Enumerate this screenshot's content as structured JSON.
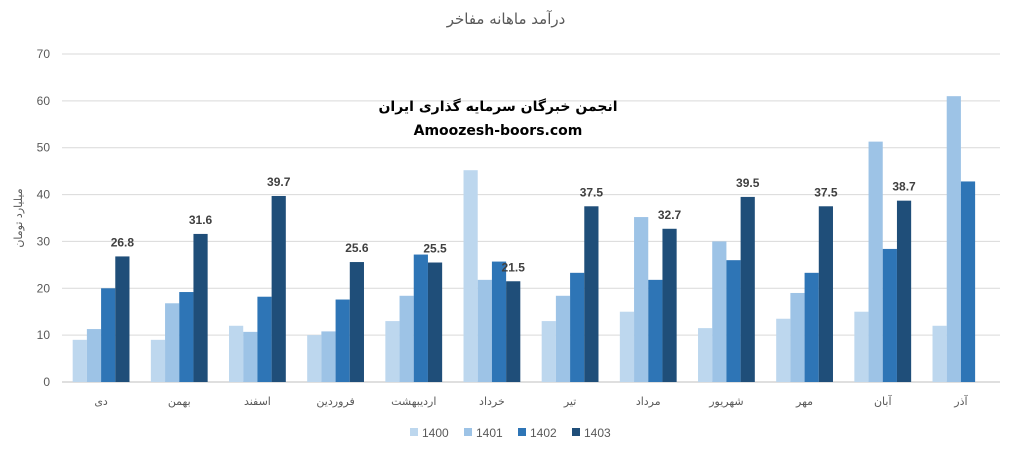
{
  "chart_data": {
    "type": "bar",
    "title": "درآمد ماهانه مفاخر",
    "ylabel": "میلیارد تومان",
    "xlabel": "",
    "ylim": [
      0,
      70
    ],
    "yticks": [
      0,
      10,
      20,
      30,
      40,
      50,
      60,
      70
    ],
    "grid": true,
    "legend_position": "bottom",
    "categories": [
      "دی",
      "بهمن",
      "اسفند",
      "فروردین",
      "اردیبهشت",
      "خرداد",
      "تیر",
      "مرداد",
      "شهریور",
      "مهر",
      "آبان",
      "آذر"
    ],
    "series": [
      {
        "name": "1400",
        "color": "#bdd7ee",
        "values": [
          9,
          9,
          12,
          10,
          13,
          45.2,
          13,
          15,
          11.5,
          13.5,
          15,
          12
        ]
      },
      {
        "name": "1401",
        "color": "#9dc3e6",
        "values": [
          11.3,
          16.8,
          10.7,
          10.8,
          18.4,
          21.8,
          18.4,
          35.2,
          30,
          19,
          51.3,
          61
        ]
      },
      {
        "name": "1402",
        "color": "#2e75b6",
        "values": [
          20,
          19.2,
          18.2,
          17.6,
          27.2,
          25.7,
          23.3,
          21.8,
          26,
          23.3,
          28.4,
          42.8
        ]
      },
      {
        "name": "1403",
        "color": "#1f4e79",
        "values": [
          26.8,
          31.6,
          39.7,
          25.6,
          25.5,
          21.5,
          37.5,
          32.7,
          39.5,
          37.5,
          38.7,
          null
        ]
      }
    ],
    "data_labels": {
      "series": "1403",
      "values": [
        "26.8",
        "31.6",
        "39.7",
        "25.6",
        "25.5",
        "21.5",
        "37.5",
        "32.7",
        "39.5",
        "37.5",
        "38.7",
        ""
      ]
    }
  },
  "watermark": {
    "line1": "انجمن خبرگان سرمایه گذاری ایران",
    "line2": "Amoozesh-boors.com"
  }
}
